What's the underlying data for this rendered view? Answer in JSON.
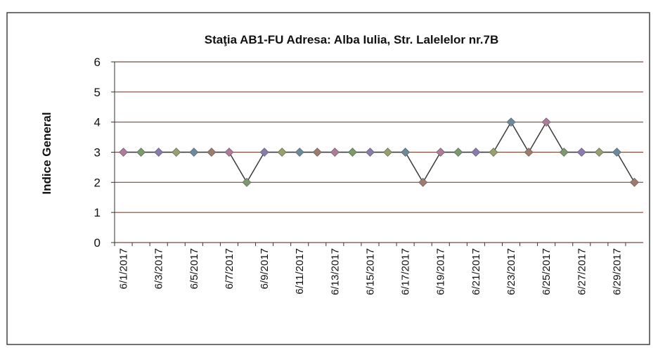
{
  "chart_data": {
    "type": "line",
    "title": "Staţia AB1-FU  Adresa: Alba Iulia, Str. Lalelelor nr.7B",
    "y_label": "Indice General",
    "categories": [
      "6/1/2017",
      null,
      "6/3/2017",
      null,
      "6/5/2017",
      null,
      "6/7/2017",
      null,
      "6/9/2017",
      null,
      "6/11/2017",
      null,
      "6/13/2017",
      null,
      "6/15/2017",
      null,
      "6/17/2017",
      null,
      "6/19/2017",
      null,
      "6/21/2017",
      null,
      "6/23/2017",
      null,
      "6/25/2017",
      null,
      "6/27/2017",
      null,
      "6/29/2017",
      null
    ],
    "values": [
      3,
      3,
      3,
      3,
      3,
      3,
      3,
      2,
      3,
      3,
      3,
      3,
      3,
      3,
      3,
      3,
      3,
      2,
      3,
      3,
      3,
      3,
      4,
      3,
      4,
      3,
      3,
      3,
      3,
      2
    ],
    "color": "#3a3a3a",
    "marker_colors": [
      "#b07a9a",
      "#7a9a6a",
      "#8a7ab0",
      "#9aa06a",
      "#6a8aa0",
      "#a07a6a"
    ],
    "grid_color": "#7a4a3a",
    "ylim": [
      0,
      6
    ],
    "yticks": [
      0,
      1,
      2,
      3,
      4,
      5,
      6
    ],
    "grid": true
  }
}
